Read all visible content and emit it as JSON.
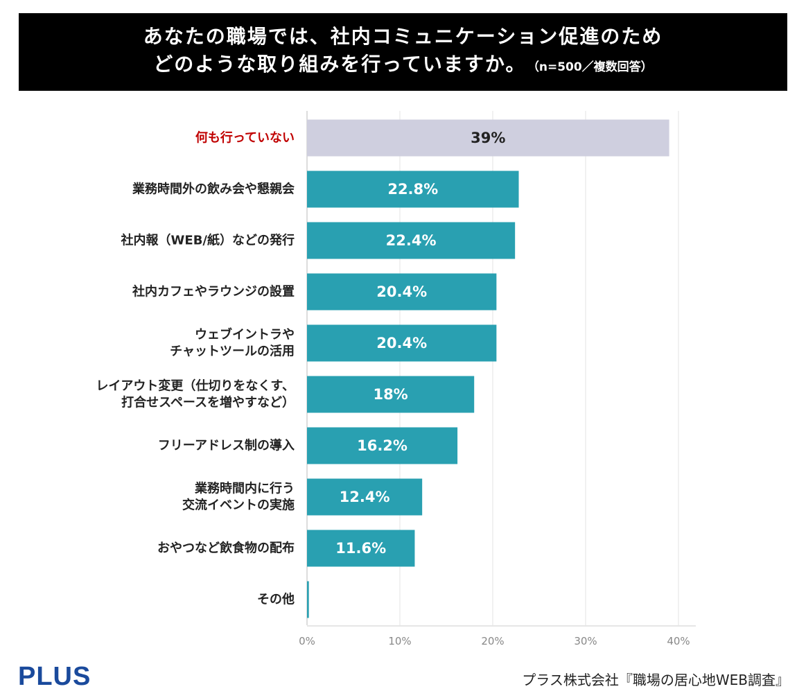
{
  "title": {
    "line1": "あなたの職場では、社内コミュニケーション促進のため",
    "line2": "どのような取り組みを行っていますか。",
    "note": "（n=500／複数回答）"
  },
  "brand": "PLUS",
  "source": "プラス株式会社『職場の居心地WEB調査』",
  "colors": {
    "bar": "#29a0b1",
    "highlight_bar": "#cfcfdf",
    "highlight_label": "#c00000",
    "label": "#222222",
    "grid": "#e3e3e3",
    "tick": "#888888"
  },
  "chart_data": {
    "type": "bar",
    "orientation": "horizontal",
    "title": "あなたの職場では、社内コミュニケーション促進のため どのような取り組みを行っていますか。",
    "categories": [
      [
        "何も行っていない"
      ],
      [
        "業務時間外の飲み会や懇親会"
      ],
      [
        "社内報（WEB/紙）などの発行"
      ],
      [
        "社内カフェやラウンジの設置"
      ],
      [
        "ウェブイントラや",
        "チャットツールの活用"
      ],
      [
        "レイアウト変更（仕切りをなくす、",
        "打合せスペースを増やすなど）"
      ],
      [
        "フリーアドレス制の導入"
      ],
      [
        "業務時間内に行う",
        "交流イベントの実施"
      ],
      [
        "おやつなど飲食物の配布"
      ],
      [
        "その他"
      ]
    ],
    "values": [
      39,
      22.8,
      22.4,
      20.4,
      20.4,
      18,
      16.2,
      12.4,
      11.6,
      0.2
    ],
    "value_labels": [
      "39%",
      "22.8%",
      "22.4%",
      "20.4%",
      "20.4%",
      "18%",
      "16.2%",
      "12.4%",
      "11.6%",
      ""
    ],
    "highlight_index": 0,
    "xlim": [
      0,
      40
    ],
    "ticks": [
      0,
      10,
      20,
      30,
      40
    ],
    "tick_labels": [
      "0%",
      "10%",
      "20%",
      "30%",
      "40%"
    ],
    "xlabel": "",
    "ylabel": "",
    "grid": true
  }
}
